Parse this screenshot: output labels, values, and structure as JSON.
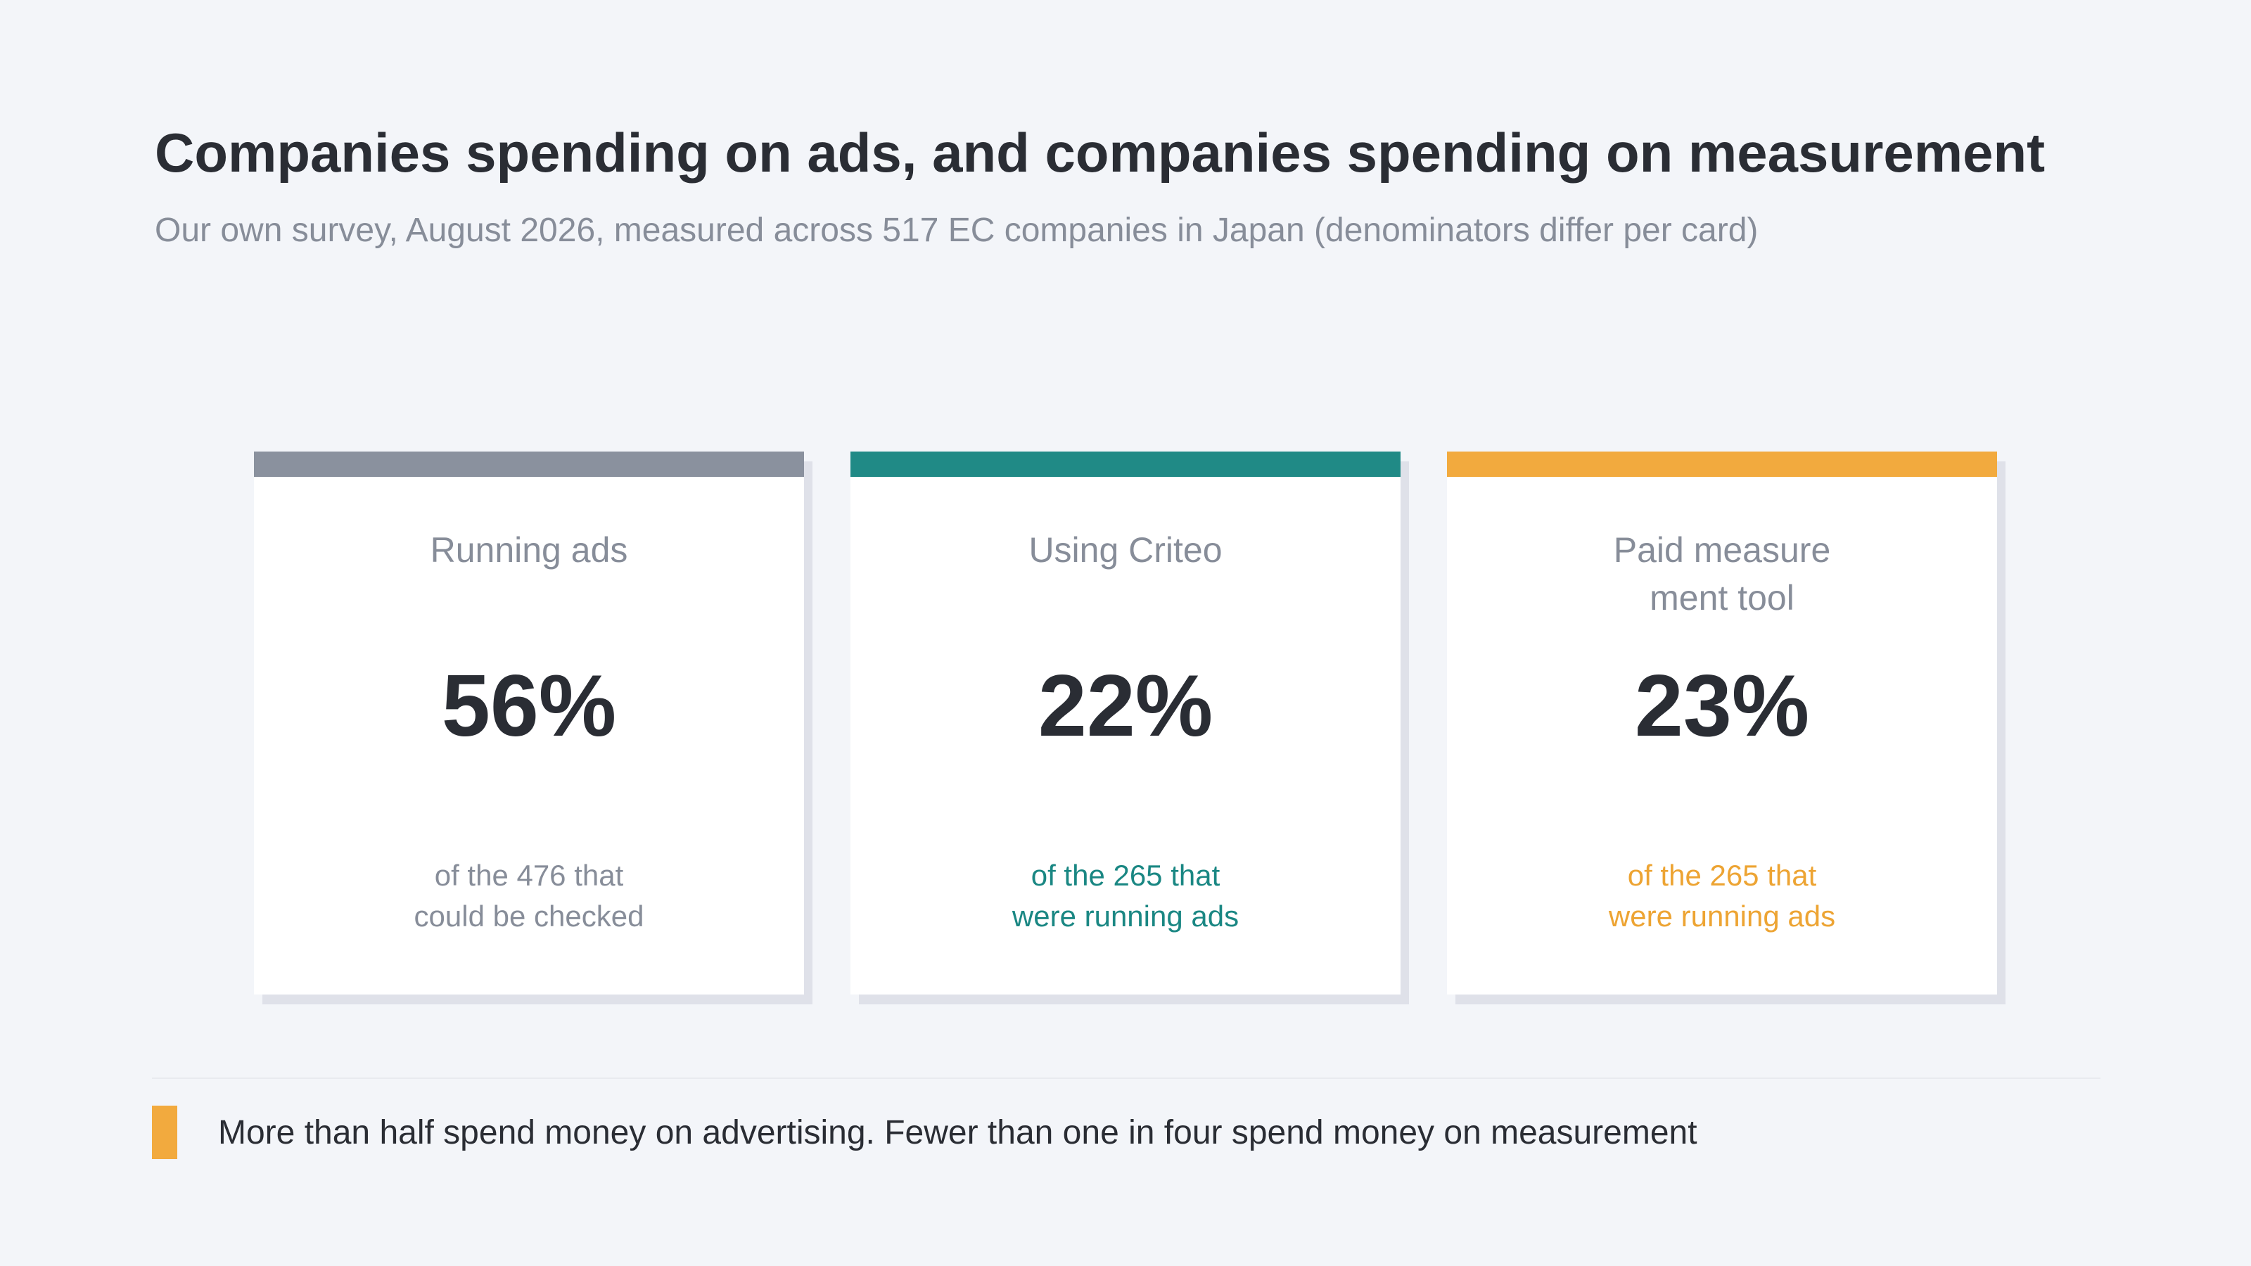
{
  "header": {
    "title": "Companies spending on ads, and companies spending on measurement",
    "subtitle": "Our own survey, August 2026, measured across 517 EC companies in Japan (denominators differ per card)"
  },
  "cards": [
    {
      "label": "Running ads",
      "value": "56%",
      "note": "of the 476 that\ncould be checked",
      "accent_color": "#8a919e",
      "note_color": "#878d99"
    },
    {
      "label": "Using Criteo",
      "value": "22%",
      "note": "of the 265 that\nwere running ads",
      "accent_color": "#208a86",
      "note_color": "#1a8783"
    },
    {
      "label": "Paid measurement tool",
      "value": "23%",
      "note": "of the 265 that\nwere running ads",
      "accent_color": "#f2aa3e",
      "note_color": "#eda433"
    }
  ],
  "footer": {
    "text": "More than half spend money on advertising. Fewer than one in four spend money on measurement",
    "marker_color": "#f2aa3e"
  }
}
